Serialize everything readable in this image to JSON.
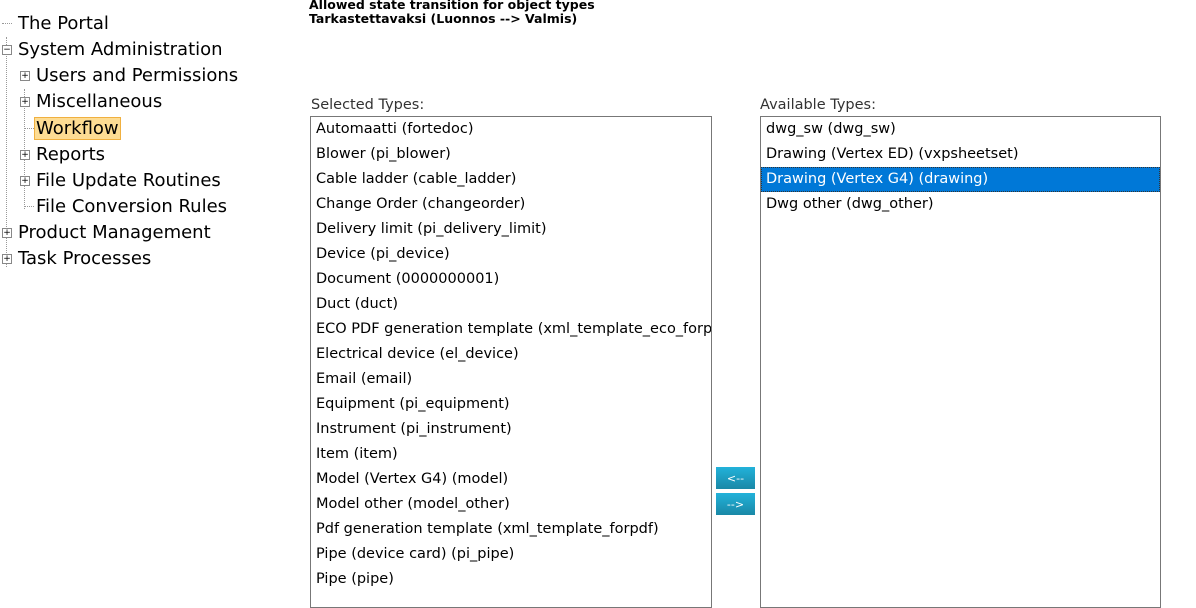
{
  "tree": [
    {
      "label": "The Portal",
      "level": 0,
      "state": "leaf"
    },
    {
      "label": "System Administration",
      "level": 0,
      "state": "expanded"
    },
    {
      "label": "Users and Permissions",
      "level": 1,
      "state": "collapsed"
    },
    {
      "label": "Miscellaneous",
      "level": 1,
      "state": "collapsed"
    },
    {
      "label": "Workflow",
      "level": 1,
      "state": "leaf",
      "selected": true
    },
    {
      "label": "Reports",
      "level": 1,
      "state": "collapsed"
    },
    {
      "label": "File Update Routines",
      "level": 1,
      "state": "collapsed"
    },
    {
      "label": "File Conversion Rules",
      "level": 1,
      "state": "leaf"
    },
    {
      "label": "Product Management",
      "level": 0,
      "state": "collapsed"
    },
    {
      "label": "Task Processes",
      "level": 0,
      "state": "collapsed"
    }
  ],
  "header": {
    "title": "Allowed state transition for object types",
    "subtitle": "Tarkastettavaksi (Luonnos --> Valmis)"
  },
  "selected_types": {
    "label": "Selected Types:",
    "items": [
      "Automaatti (fortedoc)",
      "Blower (pi_blower)",
      "Cable ladder (cable_ladder)",
      "Change Order (changeorder)",
      "Delivery limit (pi_delivery_limit)",
      "Device (pi_device)",
      "Document (0000000001)",
      "Duct (duct)",
      "ECO PDF generation template (xml_template_eco_forpdf)",
      "Electrical device (el_device)",
      "Email (email)",
      "Equipment (pi_equipment)",
      "Instrument (pi_instrument)",
      "Item (item)",
      "Model (Vertex G4) (model)",
      "Model other (model_other)",
      "Pdf generation template (xml_template_forpdf)",
      "Pipe (device card) (pi_pipe)",
      "Pipe (pipe)"
    ]
  },
  "available_types": {
    "label": "Available Types:",
    "items": [
      "dwg_sw (dwg_sw)",
      "Drawing (Vertex ED) (vxpsheetset)",
      "Drawing (Vertex G4) (drawing)",
      "Dwg other (dwg_other)"
    ],
    "selected_index": 2
  },
  "buttons": {
    "add": "<--",
    "remove": "-->"
  },
  "colors": {
    "highlight": "#0078d7",
    "tree_selected": "#fddc93",
    "button": "#1e9ec4"
  }
}
